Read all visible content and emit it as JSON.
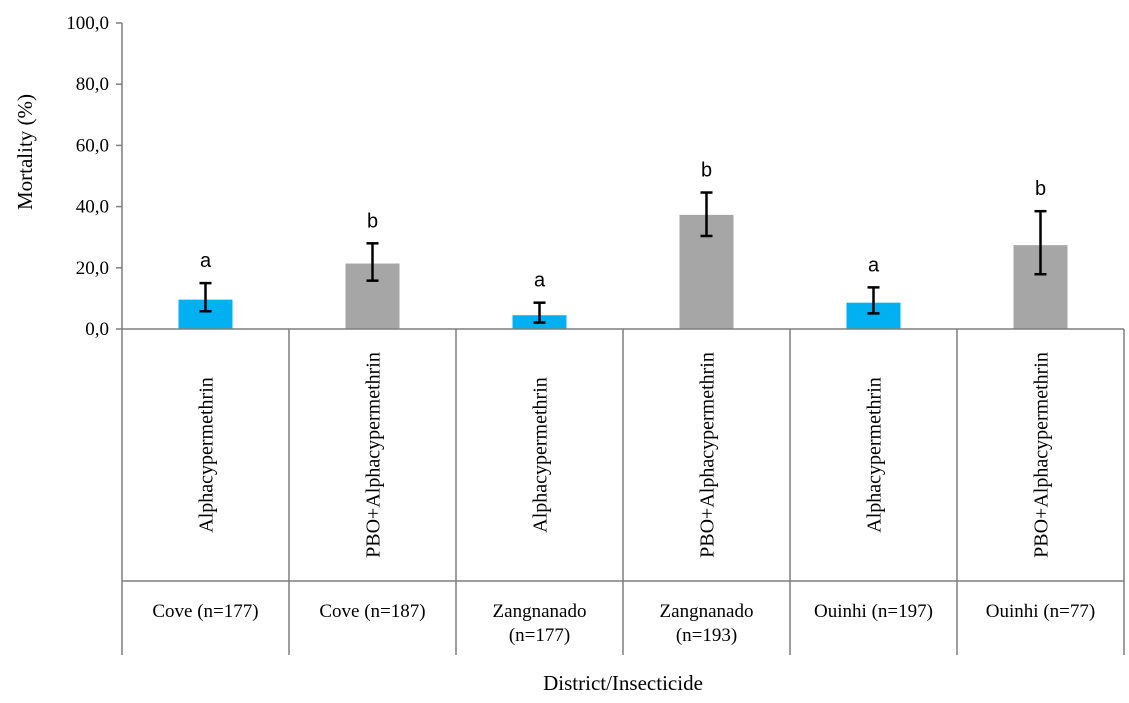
{
  "chart_data": {
    "type": "bar",
    "title": "",
    "xlabel": "District/Insecticide",
    "ylabel": "Mortality (%)",
    "ylim": [
      0,
      100
    ],
    "yticks": [
      "0,0",
      "20,0",
      "40,0",
      "60,0",
      "80,0",
      "100,0"
    ],
    "grid": false,
    "legend": "none",
    "categories": [
      {
        "insecticide": "Alphacypermethrin",
        "district": [
          "Cove (n=177)"
        ]
      },
      {
        "insecticide": "PBO+Alphacypermethrin",
        "district": [
          "Cove (n=187)"
        ]
      },
      {
        "insecticide": "Alphacypermethrin",
        "district": [
          "Zangnanado",
          "(n=177)"
        ]
      },
      {
        "insecticide": "PBO+Alphacypermethrin",
        "district": [
          "Zangnanado",
          "(n=193)"
        ]
      },
      {
        "insecticide": "Alphacypermethrin",
        "district": [
          "Ouinhi (n=197)"
        ]
      },
      {
        "insecticide": "PBO+Alphacypermethrin",
        "district": [
          "Ouinhi (n=77)"
        ]
      }
    ],
    "values": [
      9.6,
      21.4,
      4.5,
      37.3,
      8.6,
      27.4
    ],
    "error_low": [
      5.8,
      15.8,
      2.1,
      30.4,
      5.1,
      17.9
    ],
    "error_high": [
      15.0,
      28.0,
      8.6,
      44.6,
      13.6,
      38.5
    ],
    "significance": [
      "a",
      "b",
      "a",
      "b",
      "a",
      "b"
    ],
    "colors": {
      "Alphacypermethrin": "#00b0f0",
      "PBO+Alphacypermethrin": "#a6a6a6",
      "axis": "#7f7f7f",
      "error_bar": "#000000"
    }
  }
}
